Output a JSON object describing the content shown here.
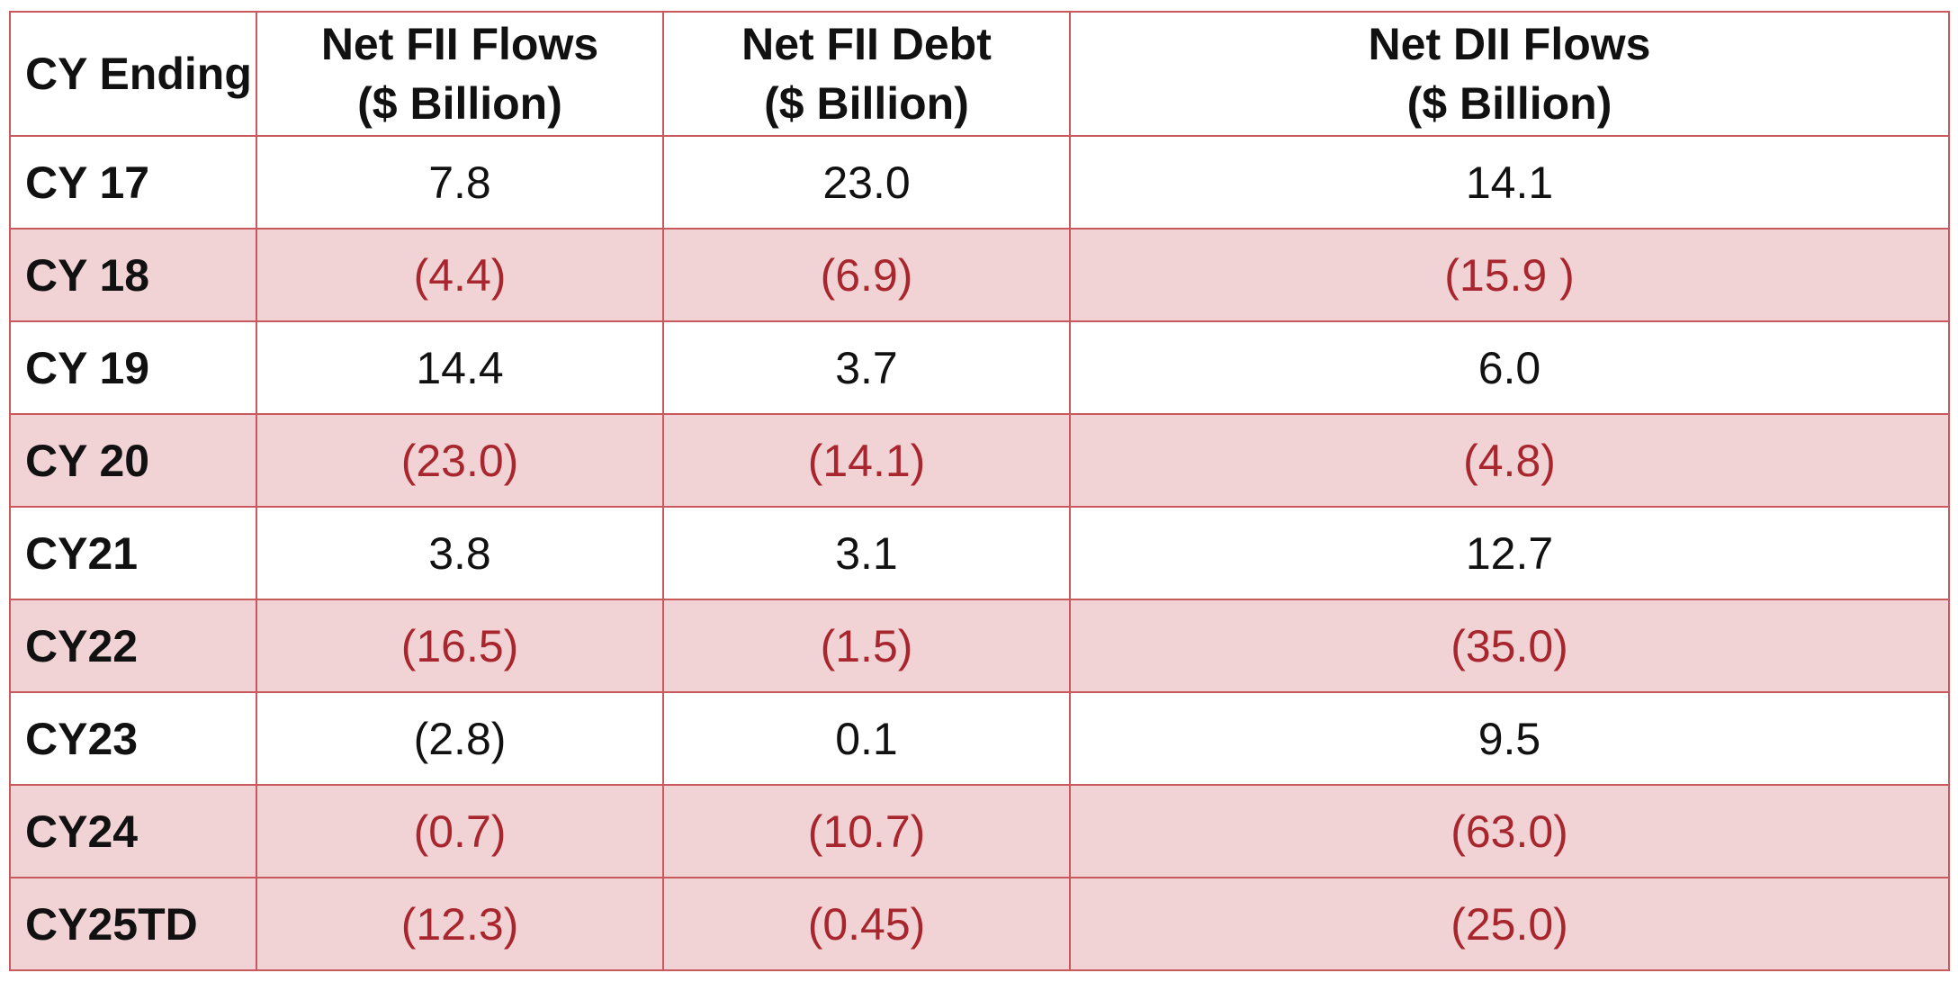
{
  "chart_data": {
    "type": "table",
    "columns": [
      {
        "lines": [
          "CY Ending"
        ]
      },
      {
        "lines": [
          "Net FII Flows",
          "($ Billion)"
        ]
      },
      {
        "lines": [
          "Net FII Debt",
          "($ Billion)"
        ]
      },
      {
        "lines": [
          "Net DII Flows",
          "($ Billion)"
        ]
      }
    ],
    "rows": [
      {
        "label": "CY 17",
        "cells": [
          "7.8",
          "23.0",
          "14.1"
        ],
        "values": [
          7.8,
          23.0,
          14.1
        ],
        "shaded": false
      },
      {
        "label": "CY 18",
        "cells": [
          "(4.4)",
          "(6.9)",
          "(15.9 )"
        ],
        "values": [
          -4.4,
          -6.9,
          -15.9
        ],
        "shaded": true
      },
      {
        "label": "CY 19",
        "cells": [
          "14.4",
          "3.7",
          "6.0"
        ],
        "values": [
          14.4,
          3.7,
          6.0
        ],
        "shaded": false
      },
      {
        "label": "CY 20",
        "cells": [
          "(23.0)",
          "(14.1)",
          "(4.8)"
        ],
        "values": [
          -23.0,
          -14.1,
          -4.8
        ],
        "shaded": true
      },
      {
        "label": "CY21",
        "cells": [
          "3.8",
          "3.1",
          "12.7"
        ],
        "values": [
          3.8,
          3.1,
          12.7
        ],
        "shaded": false
      },
      {
        "label": "CY22",
        "cells": [
          "(16.5)",
          "(1.5)",
          "(35.0)"
        ],
        "values": [
          -16.5,
          -1.5,
          -35.0
        ],
        "shaded": true
      },
      {
        "label": "CY23",
        "cells": [
          "(2.8)",
          "0.1",
          "9.5"
        ],
        "values": [
          -2.8,
          0.1,
          9.5
        ],
        "shaded": false
      },
      {
        "label": "CY24",
        "cells": [
          "(0.7)",
          "(10.7)",
          "(63.0)"
        ],
        "values": [
          -0.7,
          -10.7,
          -63.0
        ],
        "shaded": true
      },
      {
        "label": "CY25TD",
        "cells": [
          "(12.3)",
          "(0.45)",
          "(25.0)"
        ],
        "values": [
          -12.3,
          -0.45,
          -25.0
        ],
        "shaded": true
      }
    ],
    "colors": {
      "border": "#c9595c",
      "shaded_row": "#f2d3d5",
      "negative_text": "#a8262d",
      "text": "#111111"
    }
  }
}
